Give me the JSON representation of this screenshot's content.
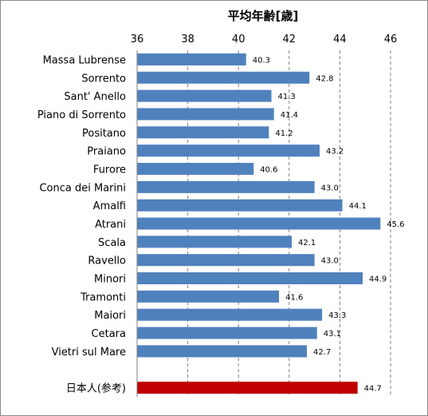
{
  "chart_data": {
    "type": "bar",
    "orientation": "horizontal",
    "title": "平均年齢[歳]",
    "xlim": [
      36,
      46
    ],
    "x_ticks": [
      "36",
      "38",
      "40",
      "42",
      "44",
      "46"
    ],
    "axis_position": "top",
    "grid": "vertical dashed",
    "categories": [
      "Massa Lubrense",
      "Sorrento",
      "Sant' Anello",
      "Piano di Sorrento",
      "Positano",
      "Praiano",
      "Furore",
      "Conca dei Marini",
      "Amalfi",
      "Atrani",
      "Scala",
      "Ravello",
      "Minori",
      "Tramonti",
      "Maiori",
      "Cetara",
      "Vietri sul Mare",
      "",
      "日本人(参考)"
    ],
    "values": [
      40.3,
      42.8,
      41.3,
      41.4,
      41.2,
      43.2,
      40.6,
      43.0,
      44.1,
      45.6,
      42.1,
      43.0,
      44.9,
      41.6,
      43.3,
      43.1,
      42.7,
      null,
      44.7
    ],
    "data_labels": [
      "40.3",
      "42.8",
      "41.3",
      "41.4",
      "41.2",
      "43.2",
      "40.6",
      "43.0",
      "44.1",
      "45.6",
      "42.1",
      "43.0",
      "44.9",
      "41.6",
      "43.3",
      "43.1",
      "42.7",
      "",
      "44.7"
    ],
    "colors": {
      "bar": "#4f81bd",
      "highlight": "#c00000",
      "grid": "#7f7f7f"
    }
  }
}
